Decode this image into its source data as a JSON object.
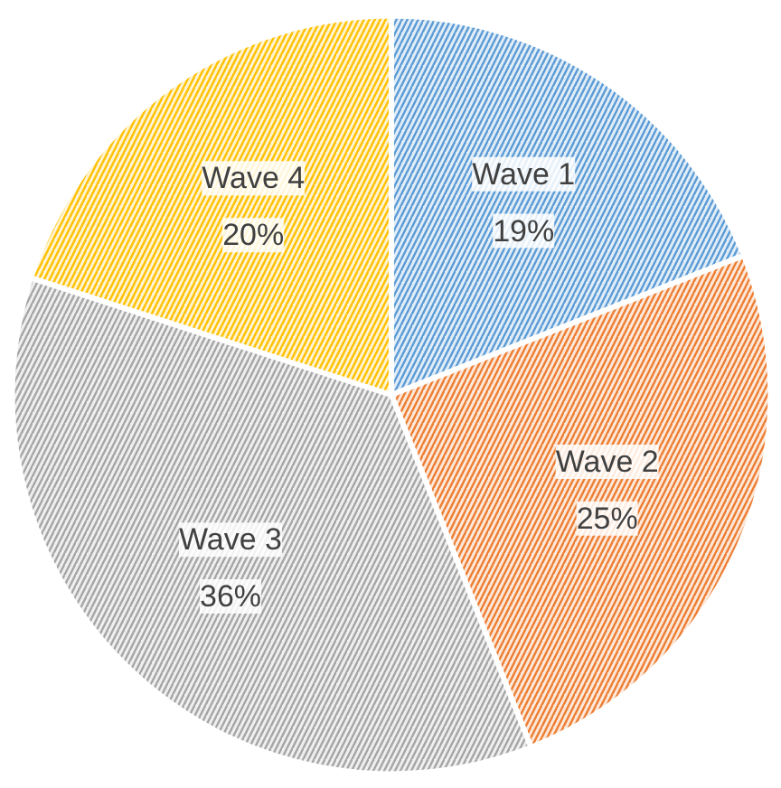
{
  "chart_data": {
    "type": "pie",
    "categories": [
      "Wave 1",
      "Wave 2",
      "Wave 3",
      "Wave 4"
    ],
    "values": [
      19,
      25,
      36,
      20
    ],
    "colors": [
      "#5b9bd5",
      "#ed7d31",
      "#a5a5a5",
      "#ffc000"
    ],
    "value_labels": [
      "19%",
      "25%",
      "36%",
      "20%"
    ]
  }
}
